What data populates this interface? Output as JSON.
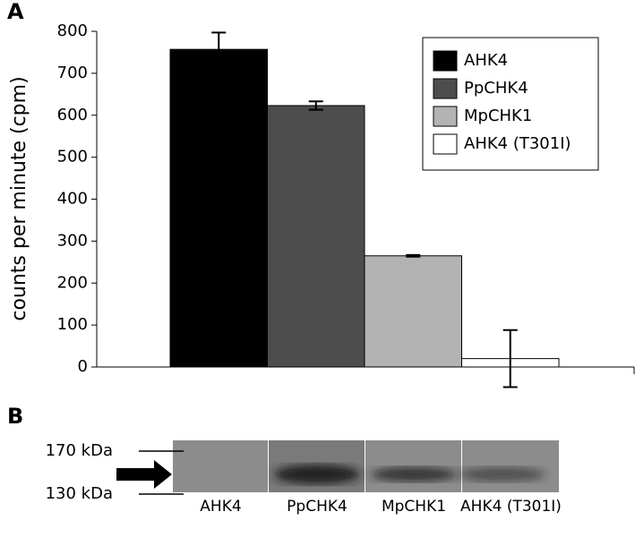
{
  "chart_data": {
    "type": "bar",
    "panel_label": "A",
    "y_label": "counts per minute (cpm)",
    "categories": [
      "AHK4",
      "PpCHK4",
      "MpCHK1",
      "AHK4 (T301I)"
    ],
    "values": [
      757,
      623,
      265,
      20
    ],
    "errors": [
      40,
      10,
      2,
      68
    ],
    "colors": [
      "#000000",
      "#4d4d4d",
      "#b3b3b3",
      "#ffffff"
    ],
    "ylim": [
      0,
      800
    ],
    "yticks": [
      0,
      100,
      200,
      300,
      400,
      500,
      600,
      700,
      800
    ],
    "legend": "upper-right"
  },
  "blot": {
    "panel_label": "B",
    "markers": [
      "170 kDa",
      "130 kDa"
    ],
    "lanes": [
      "AHK4",
      "PpCHK4",
      "MpCHK1",
      "AHK4 (T301I)"
    ]
  }
}
